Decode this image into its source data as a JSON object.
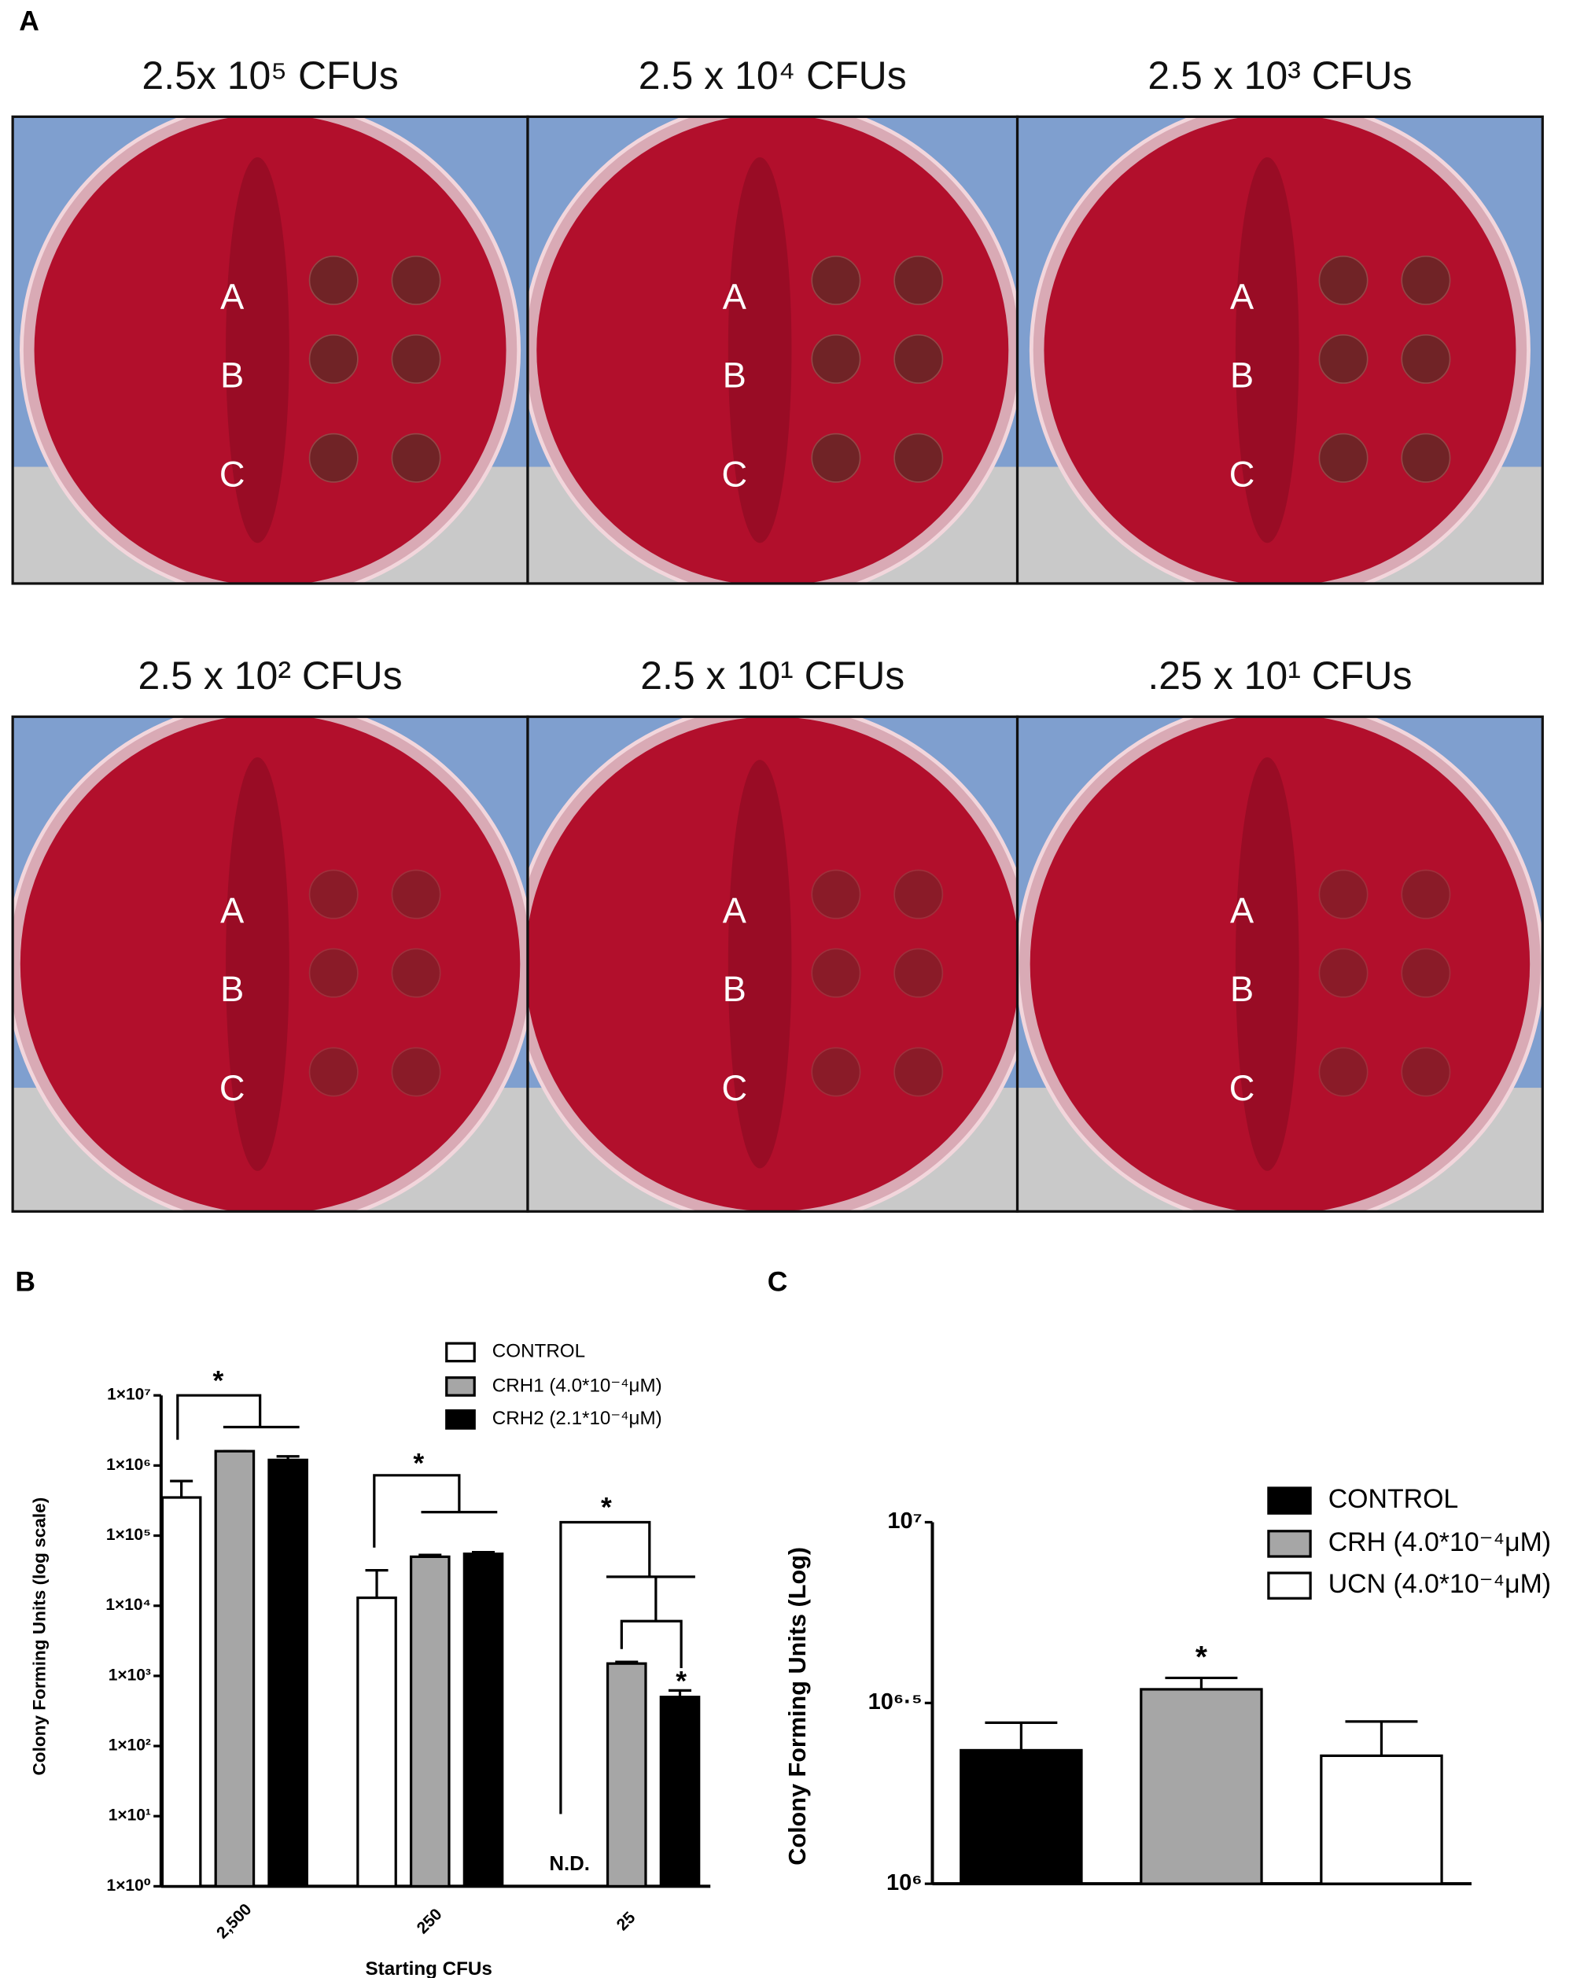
{
  "panel_labels": [
    "A",
    "B",
    "C"
  ],
  "plate_row_labels": [
    "A",
    "B",
    "C"
  ],
  "plates": [
    "2.5x 10⁵ CFUs",
    "2.5 x 10⁴ CFUs",
    "2.5 x 10³ CFUs",
    "2.5 x 10² CFUs",
    "2.5 x 10¹ CFUs",
    ".25 x 10¹ CFUs"
  ],
  "chart_data": [
    {
      "type": "bar",
      "ylabel": "Colony Forming Units (log scale)",
      "xlabel": "Starting CFUs",
      "categories": [
        "2,500",
        "250",
        "25"
      ],
      "ylog": true,
      "ylim": [
        1,
        10000000
      ],
      "yticks": [
        {
          "value": 1,
          "label": "1×10⁰"
        },
        {
          "value": 10,
          "label": "1×10¹"
        },
        {
          "value": 100,
          "label": "1×10²"
        },
        {
          "value": 1000,
          "label": "1×10³"
        },
        {
          "value": 10000,
          "label": "1×10⁴"
        },
        {
          "value": 100000,
          "label": "1×10⁵"
        },
        {
          "value": 1000000,
          "label": "1×10⁶"
        },
        {
          "value": 10000000,
          "label": "1×10⁷"
        }
      ],
      "series": [
        {
          "name": "CONTROL",
          "color": "#ffffff",
          "values": [
            350000,
            13000,
            null
          ],
          "errors": [
            250000,
            19000,
            null
          ]
        },
        {
          "name": "CRH1 (4.0*10⁻⁴μM)",
          "color": "#a6a6a6",
          "values": [
            1600000,
            50000,
            1500
          ],
          "errors": [
            0,
            3000,
            80
          ]
        },
        {
          "name": "CRH2 (2.1*10⁻⁴μM)",
          "color": "#000000",
          "values": [
            1200000,
            55000,
            500
          ],
          "errors": [
            150000,
            3000,
            120
          ]
        }
      ],
      "annotations": [
        "*",
        "*",
        "*",
        "*",
        "N.D."
      ]
    },
    {
      "type": "bar",
      "ylabel": "Colony Forming Units (Log)",
      "ylog": true,
      "ylim": [
        1000000,
        10000000
      ],
      "yticks": [
        {
          "value": 1000000,
          "label": "10⁶"
        },
        {
          "value": 3162278,
          "label": "10⁶·⁵"
        },
        {
          "value": 10000000,
          "label": "10⁷"
        }
      ],
      "series": [
        {
          "name": "CONTROL",
          "color": "#000000",
          "values": [
            2340000
          ],
          "errors": [
            450000
          ]
        },
        {
          "name": "CRH (4.0*10⁻⁴μM)",
          "color": "#a6a6a6",
          "values": [
            3450000
          ],
          "errors": [
            260000
          ]
        },
        {
          "name": "UCN (4.0*10⁻⁴μM)",
          "color": "#ffffff",
          "values": [
            2260000
          ],
          "errors": [
            550000
          ]
        }
      ],
      "annotations": [
        "*"
      ]
    }
  ]
}
